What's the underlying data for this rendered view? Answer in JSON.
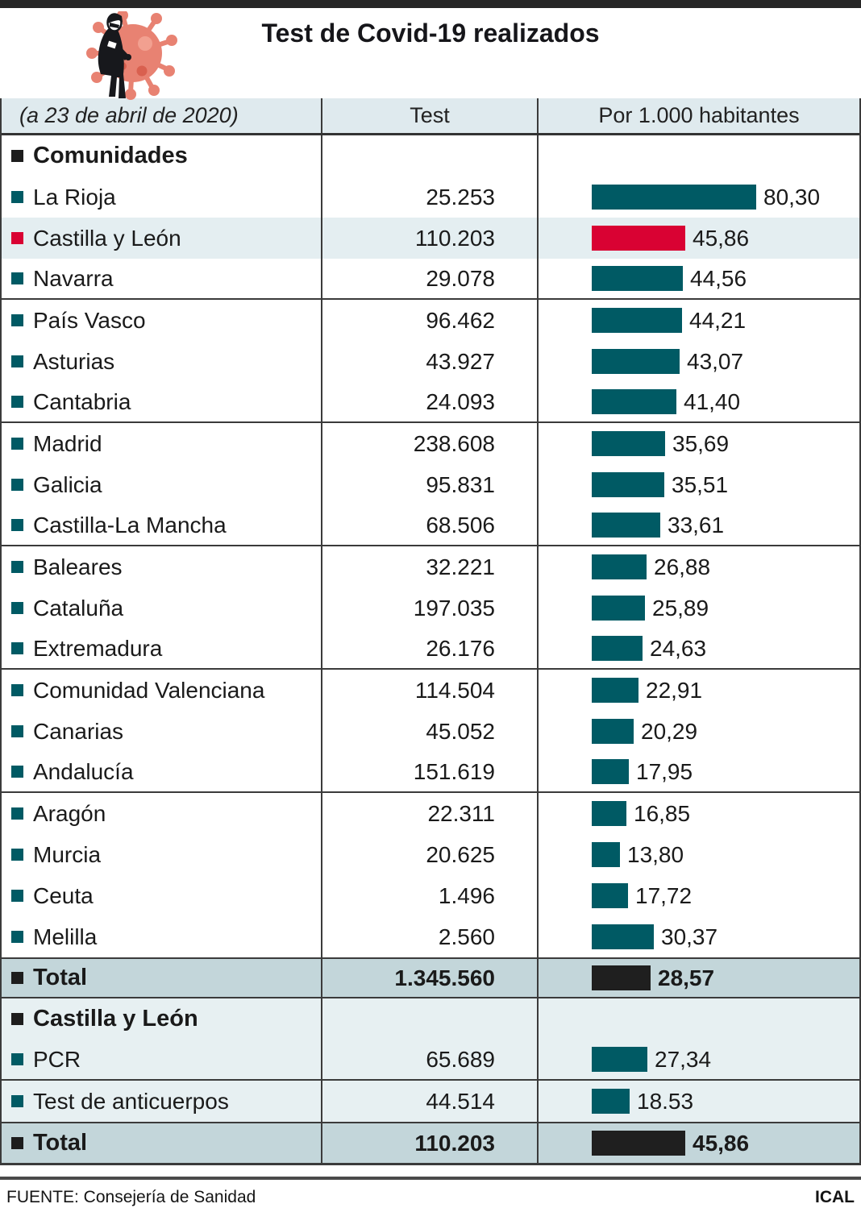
{
  "header": {
    "title": "Test de Covid-19 realizados"
  },
  "icon": {
    "name": "person-with-coronavirus-icon"
  },
  "table": {
    "date_label": "(a 23 de abril de 2020)",
    "col_test": "Test",
    "col_per1000": "Por 1.000 habitantes",
    "rows": [
      {
        "style": "header",
        "label": "Comunidades",
        "bullet": "black"
      },
      {
        "label": "La Rioja",
        "bullet": "teal",
        "bar": "teal",
        "test": "25.253",
        "rate": 80.3,
        "rate_label": "80,30"
      },
      {
        "label": "Castilla y León",
        "bullet": "red",
        "bar": "red",
        "bg": "highlight",
        "test": "110.203",
        "rate": 45.86,
        "rate_label": "45,86"
      },
      {
        "label": "Navarra",
        "bullet": "teal",
        "bar": "teal",
        "test": "29.078",
        "rate": 44.56,
        "rate_label": "44,56",
        "divider": true
      },
      {
        "label": "País Vasco",
        "bullet": "teal",
        "bar": "teal",
        "test": "96.462",
        "rate": 44.21,
        "rate_label": "44,21"
      },
      {
        "label": "Asturias",
        "bullet": "teal",
        "bar": "teal",
        "test": "43.927",
        "rate": 43.07,
        "rate_label": "43,07"
      },
      {
        "label": "Cantabria",
        "bullet": "teal",
        "bar": "teal",
        "test": "24.093",
        "rate": 41.4,
        "rate_label": "41,40",
        "divider": true
      },
      {
        "label": "Madrid",
        "bullet": "teal",
        "bar": "teal",
        "test": "238.608",
        "rate": 35.69,
        "rate_label": "35,69"
      },
      {
        "label": "Galicia",
        "bullet": "teal",
        "bar": "teal",
        "test": "95.831",
        "rate": 35.51,
        "rate_label": "35,51"
      },
      {
        "label": "Castilla-La Mancha",
        "bullet": "teal",
        "bar": "teal",
        "test": "68.506",
        "rate": 33.61,
        "rate_label": "33,61",
        "divider": true
      },
      {
        "label": "Baleares",
        "bullet": "teal",
        "bar": "teal",
        "test": "32.221",
        "rate": 26.88,
        "rate_label": "26,88"
      },
      {
        "label": "Cataluña",
        "bullet": "teal",
        "bar": "teal",
        "test": "197.035",
        "rate": 25.89,
        "rate_label": "25,89"
      },
      {
        "label": "Extremadura",
        "bullet": "teal",
        "bar": "teal",
        "test": "26.176",
        "rate": 24.63,
        "rate_label": "24,63",
        "divider": true
      },
      {
        "label": "Comunidad Valenciana",
        "bullet": "teal",
        "bar": "teal",
        "test": "114.504",
        "rate": 22.91,
        "rate_label": "22,91"
      },
      {
        "label": "Canarias",
        "bullet": "teal",
        "bar": "teal",
        "test": "45.052",
        "rate": 20.29,
        "rate_label": "20,29"
      },
      {
        "label": "Andalucía",
        "bullet": "teal",
        "bar": "teal",
        "test": "151.619",
        "rate": 17.95,
        "rate_label": "17,95",
        "divider": true
      },
      {
        "label": "Aragón",
        "bullet": "teal",
        "bar": "teal",
        "test": "22.311",
        "rate": 16.85,
        "rate_label": "16,85"
      },
      {
        "label": "Murcia",
        "bullet": "teal",
        "bar": "teal",
        "test": "20.625",
        "rate": 13.8,
        "rate_label": "13,80"
      },
      {
        "label": "Ceuta",
        "bullet": "teal",
        "bar": "teal",
        "test": "1.496",
        "rate": 17.72,
        "rate_label": "17,72"
      },
      {
        "label": "Melilla",
        "bullet": "teal",
        "bar": "teal",
        "test": "2.560",
        "rate": 30.37,
        "rate_label": "30,37"
      },
      {
        "style": "total",
        "label": "Total",
        "bullet": "black",
        "bar": "black",
        "bg": "total",
        "test": "1.345.560",
        "rate": 28.57,
        "rate_label": "28,57"
      },
      {
        "style": "header",
        "label": "Castilla y León",
        "bullet": "black",
        "bg": "section"
      },
      {
        "label": "PCR",
        "bullet": "teal",
        "bar": "teal",
        "bg": "section",
        "test": "65.689",
        "rate": 27.34,
        "rate_label": "27,34",
        "divider": true
      },
      {
        "label": "Test de anticuerpos",
        "bullet": "teal",
        "bar": "teal",
        "bg": "section",
        "test": "44.514",
        "rate": 18.53,
        "rate_label": "18.53"
      },
      {
        "style": "total",
        "label": "Total",
        "bullet": "black",
        "bar": "black",
        "bg": "total",
        "test": "110.203",
        "rate": 45.86,
        "rate_label": "45,86"
      }
    ]
  },
  "footer": {
    "source": "FUENTE: Consejería de Sanidad",
    "credit": "ICAL"
  },
  "colors": {
    "bar_teal": "#005a64",
    "bar_red": "#d90233",
    "bar_black": "#1f1f1f",
    "row_highlight_bg": "#e4eef1",
    "section_bg": "#e7f0f2",
    "total_row_bg": "#c3d6da",
    "header_row_bg": "#dfeaee",
    "top_bar": "#262626",
    "virus_salmon": "#e88272"
  },
  "chart_data": {
    "type": "bar",
    "orientation": "horizontal",
    "title": "Test de Covid-19 realizados",
    "subtitle": "(a 23 de abril de 2020)",
    "value_columns": [
      "Test",
      "Por 1.000 habitantes"
    ],
    "categories": [
      "La Rioja",
      "Castilla y León",
      "Navarra",
      "País Vasco",
      "Asturias",
      "Cantabria",
      "Madrid",
      "Galicia",
      "Castilla-La Mancha",
      "Baleares",
      "Cataluña",
      "Extremadura",
      "Comunidad Valenciana",
      "Canarias",
      "Andalucía",
      "Aragón",
      "Murcia",
      "Ceuta",
      "Melilla"
    ],
    "series": [
      {
        "name": "Test",
        "values": [
          25253,
          110203,
          29078,
          96462,
          43927,
          24093,
          238608,
          95831,
          68506,
          32221,
          197035,
          26176,
          114504,
          45052,
          151619,
          22311,
          20625,
          1496,
          2560
        ]
      },
      {
        "name": "Por 1.000 habitantes",
        "values": [
          80.3,
          45.86,
          44.56,
          44.21,
          43.07,
          41.4,
          35.69,
          35.51,
          33.61,
          26.88,
          25.89,
          24.63,
          22.91,
          20.29,
          17.95,
          16.85,
          13.8,
          17.72,
          30.37
        ]
      }
    ],
    "total": {
      "Test": 1345560,
      "Por 1.000 habitantes": 28.57
    },
    "breakdown_castilla_y_leon": {
      "categories": [
        "PCR",
        "Test de anticuerpos"
      ],
      "Test": [
        65689,
        44514
      ],
      "Por 1.000 habitantes": [
        27.34,
        18.53
      ],
      "total": {
        "Test": 110203,
        "Por 1.000 habitantes": 45.86
      }
    },
    "highlighted_category": "Castilla y León",
    "bar_color": "#005a64",
    "highlight_color": "#d90233",
    "total_bar_color": "#1f1f1f",
    "xlim": [
      0,
      85
    ],
    "grid": false,
    "legend": false
  }
}
